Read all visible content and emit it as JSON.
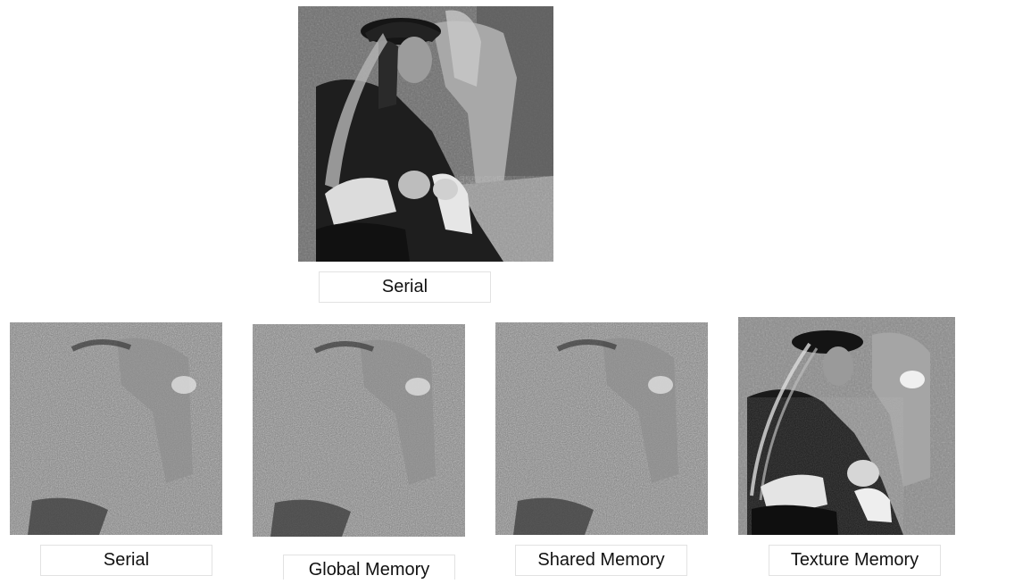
{
  "figure": {
    "original": {
      "caption": "Serial",
      "description_icon": "grayscale-photo-icon"
    },
    "results": [
      {
        "caption": "Serial",
        "icon": "noisy-edge-photo-icon"
      },
      {
        "caption": "Global Memory",
        "icon": "noisy-edge-photo-icon"
      },
      {
        "caption": "Shared Memory",
        "icon": "noisy-edge-photo-icon"
      },
      {
        "caption": "Texture Memory",
        "icon": "edge-photo-icon"
      }
    ]
  },
  "colors": {
    "background": "#ffffff",
    "caption_border": "#e2e2e2",
    "caption_text": "#111111"
  }
}
